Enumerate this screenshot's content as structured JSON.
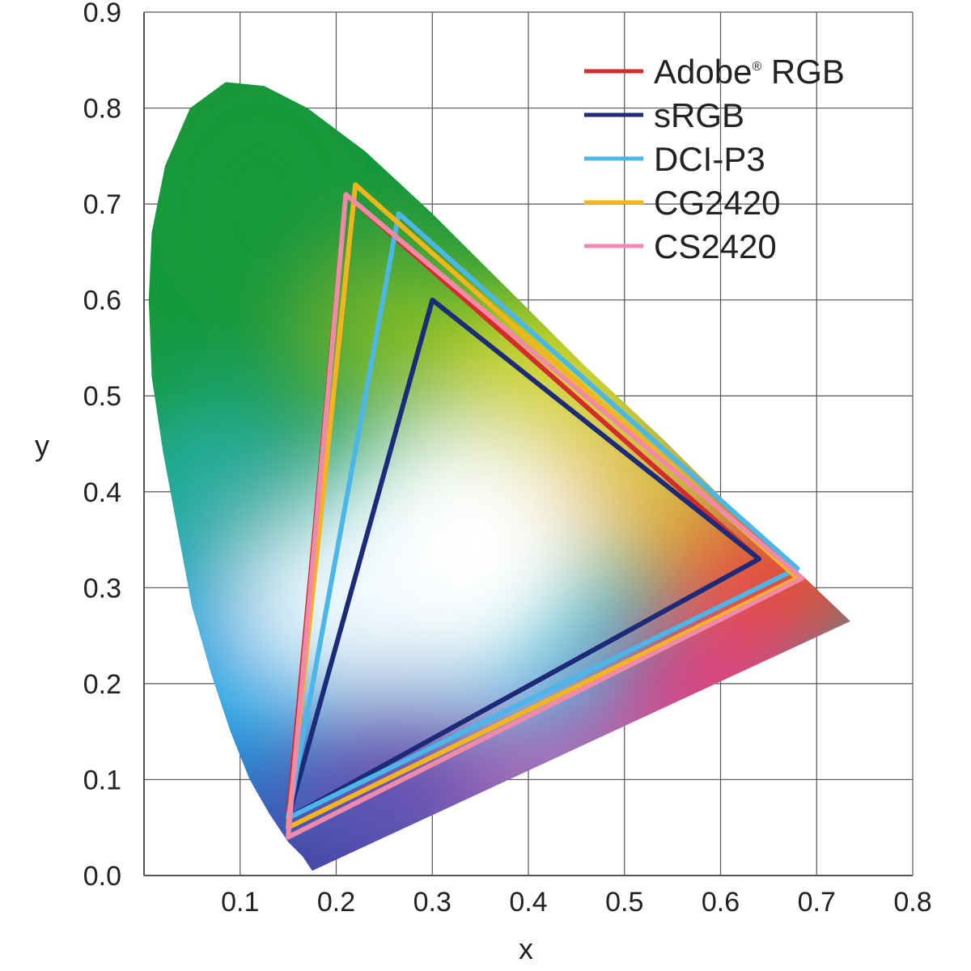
{
  "chart_data": {
    "type": "scatter",
    "title": "",
    "xlabel": "x",
    "ylabel": "y",
    "xlim": [
      0.0,
      0.8
    ],
    "ylim": [
      0.0,
      0.9
    ],
    "grid": true,
    "legend_position": "top-right",
    "x_ticks": [
      "0.1",
      "0.2",
      "0.3",
      "0.4",
      "0.5",
      "0.6",
      "0.7",
      "0.8"
    ],
    "y_ticks": [
      "0.0",
      "0.1",
      "0.2",
      "0.3",
      "0.4",
      "0.5",
      "0.6",
      "0.7",
      "0.8",
      "0.9"
    ],
    "spectral_locus": [
      [
        0.175,
        0.005
      ],
      [
        0.165,
        0.02
      ],
      [
        0.15,
        0.035
      ],
      [
        0.13,
        0.065
      ],
      [
        0.11,
        0.1
      ],
      [
        0.09,
        0.15
      ],
      [
        0.07,
        0.21
      ],
      [
        0.05,
        0.28
      ],
      [
        0.035,
        0.36
      ],
      [
        0.02,
        0.44
      ],
      [
        0.008,
        0.52
      ],
      [
        0.005,
        0.6
      ],
      [
        0.008,
        0.67
      ],
      [
        0.022,
        0.74
      ],
      [
        0.048,
        0.8
      ],
      [
        0.085,
        0.827
      ],
      [
        0.125,
        0.823
      ],
      [
        0.17,
        0.8
      ],
      [
        0.23,
        0.755
      ],
      [
        0.3,
        0.69
      ],
      [
        0.38,
        0.61
      ],
      [
        0.46,
        0.53
      ],
      [
        0.54,
        0.455
      ],
      [
        0.62,
        0.375
      ],
      [
        0.735,
        0.265
      ],
      [
        0.175,
        0.005
      ]
    ],
    "series": [
      {
        "name": "Adobe® RGB",
        "legend_main": "Adobe",
        "legend_sup": "®",
        "legend_rest": " RGB",
        "color": "#d42b2b",
        "points": [
          [
            0.64,
            0.33
          ],
          [
            0.21,
            0.71
          ],
          [
            0.15,
            0.06
          ]
        ]
      },
      {
        "name": "sRGB",
        "color": "#1c2a7a",
        "points": [
          [
            0.64,
            0.33
          ],
          [
            0.3,
            0.6
          ],
          [
            0.15,
            0.06
          ]
        ]
      },
      {
        "name": "DCI-P3",
        "color": "#4bb7e8",
        "points": [
          [
            0.68,
            0.32
          ],
          [
            0.265,
            0.69
          ],
          [
            0.15,
            0.06
          ]
        ]
      },
      {
        "name": "CG2420",
        "color": "#f4b51c",
        "points": [
          [
            0.68,
            0.31
          ],
          [
            0.22,
            0.72
          ],
          [
            0.15,
            0.05
          ]
        ]
      },
      {
        "name": "CS2420",
        "color": "#f08aa8",
        "points": [
          [
            0.685,
            0.31
          ],
          [
            0.21,
            0.71
          ],
          [
            0.15,
            0.04
          ]
        ]
      }
    ]
  }
}
